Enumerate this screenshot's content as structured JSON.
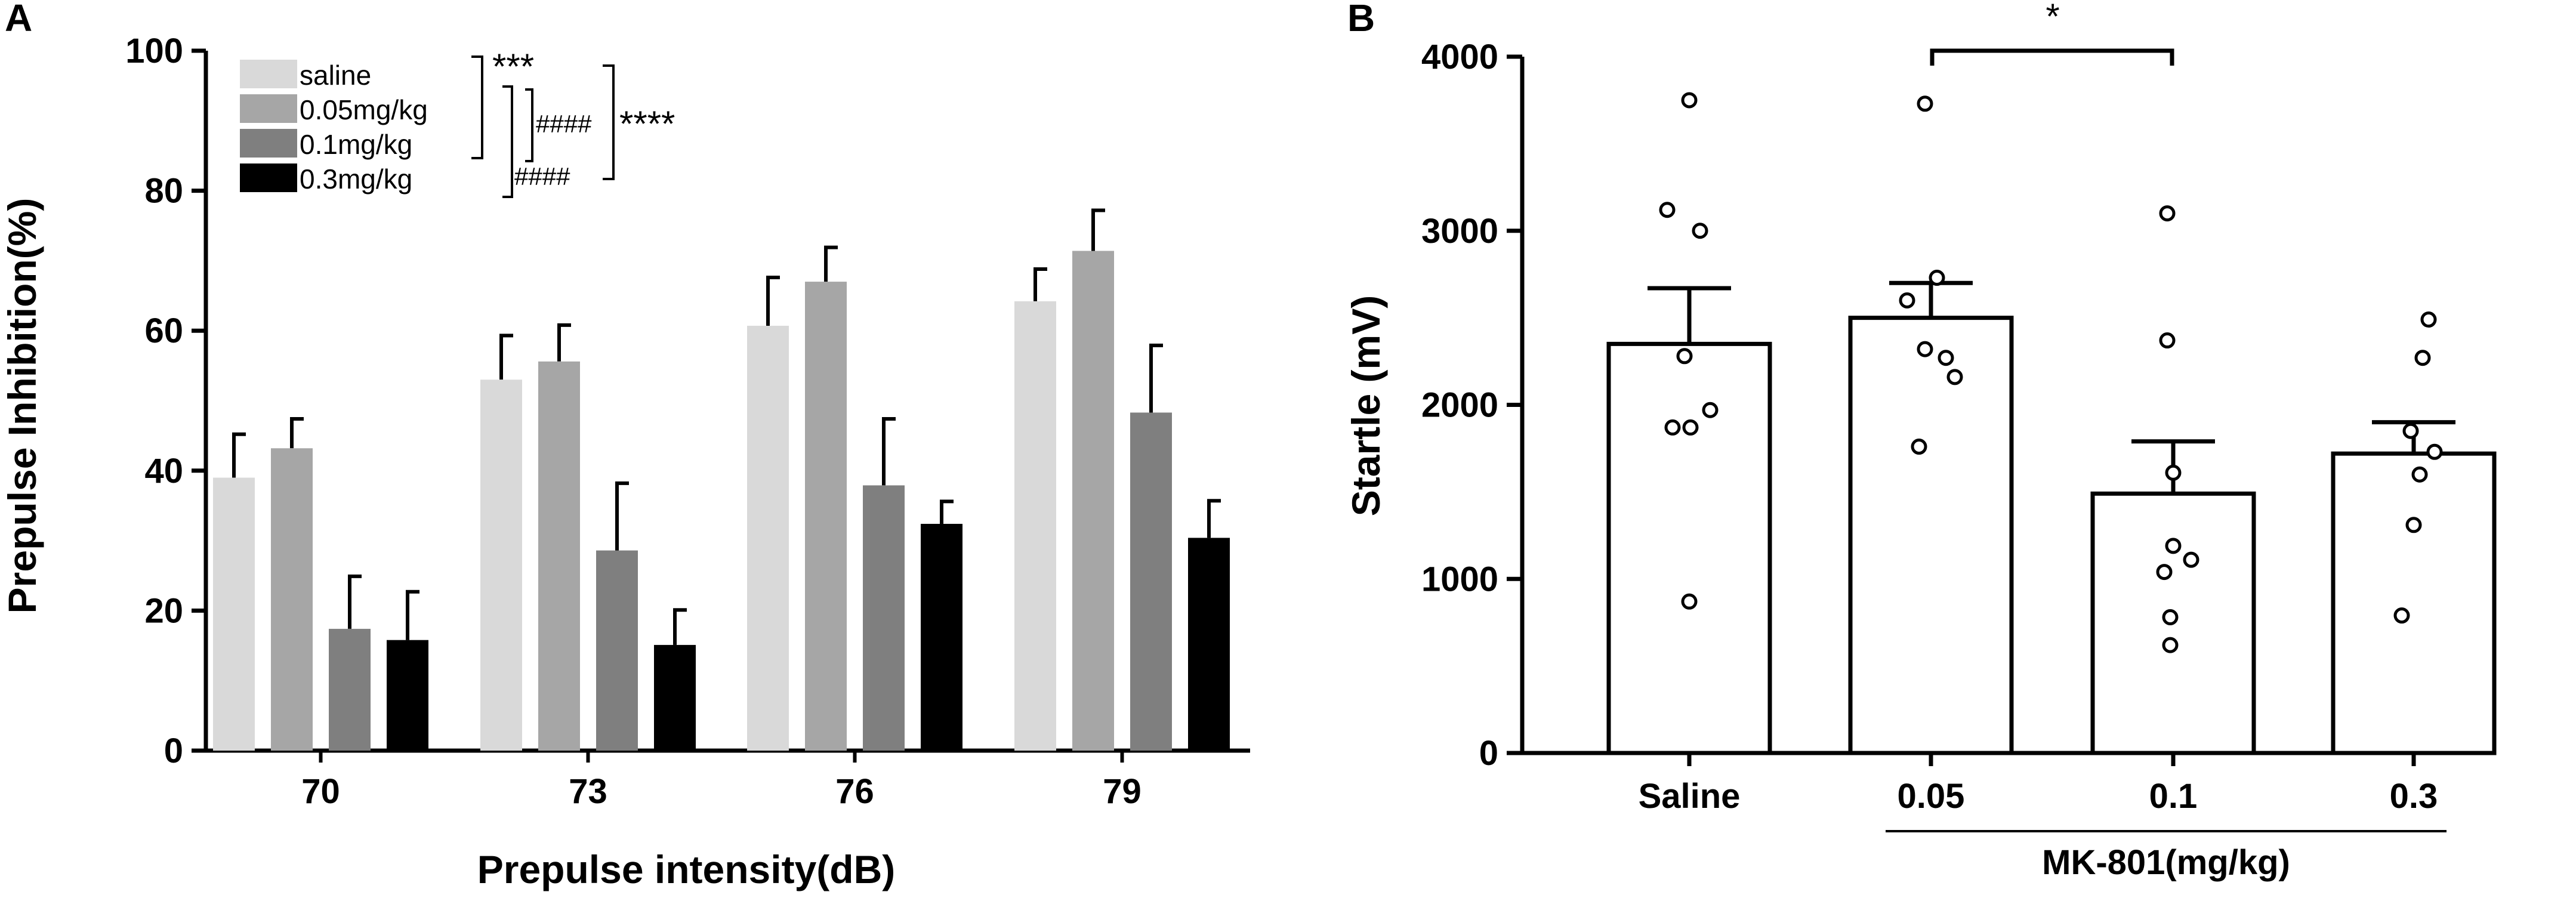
{
  "panels": {
    "a": "A",
    "b": "B"
  },
  "chart_data": [
    {
      "type": "bar",
      "panel": "A",
      "xlabel": "Prepulse intensity(dB)",
      "ylabel": "Prepulse Inhibition(%)",
      "ylim": [
        0,
        100
      ],
      "yticks": [
        0,
        20,
        40,
        60,
        80,
        100
      ],
      "categories": [
        "70",
        "73",
        "76",
        "79"
      ],
      "series": [
        {
          "name": "saline",
          "color": "#d9d9d9",
          "values": [
            39,
            53,
            60.7,
            64.2
          ],
          "errors": [
            6.2,
            6.3,
            6.9,
            4.6
          ]
        },
        {
          "name": "0.05mg/kg",
          "color": "#a6a6a6",
          "values": [
            43.2,
            55.6,
            67,
            71.4
          ],
          "errors": [
            4.2,
            5.2,
            4.9,
            5.8
          ]
        },
        {
          "name": "0.1mg/kg",
          "color": "#7f7f7f",
          "values": [
            17.4,
            28.6,
            37.9,
            48.3
          ],
          "errors": [
            7.5,
            9.6,
            9.5,
            9.6
          ]
        },
        {
          "name": "0.3mg/kg",
          "color": "#000000",
          "values": [
            15.8,
            15.1,
            32.4,
            30.4
          ],
          "errors": [
            6.9,
            5,
            3.2,
            5.3
          ]
        }
      ],
      "legend_position": "top-left",
      "annotations": {
        "sig1": "***",
        "sig2": "****",
        "hash1": "####",
        "hash2": "####"
      }
    },
    {
      "type": "bar",
      "panel": "B",
      "xlabel": "",
      "group_label": "MK-801(mg/kg)",
      "ylabel": "Startle (mV)",
      "ylim": [
        0,
        4000
      ],
      "yticks": [
        0,
        1000,
        2000,
        3000,
        4000
      ],
      "categories": [
        "Saline",
        "0.05",
        "0.1",
        "0.3"
      ],
      "values": [
        2350,
        2500,
        1490,
        1720
      ],
      "errors": [
        320,
        200,
        300,
        180
      ],
      "points": [
        [
          3750,
          3120,
          3000,
          2280,
          1970,
          1870,
          1870,
          870
        ],
        [
          3730,
          2730,
          2600,
          2320,
          2270,
          2160,
          1760
        ],
        [
          3100,
          2370,
          1610,
          1190,
          1110,
          1040,
          780,
          620
        ],
        [
          2490,
          2270,
          1850,
          1730,
          1600,
          1310,
          790
        ]
      ],
      "annotation": "*"
    }
  ]
}
